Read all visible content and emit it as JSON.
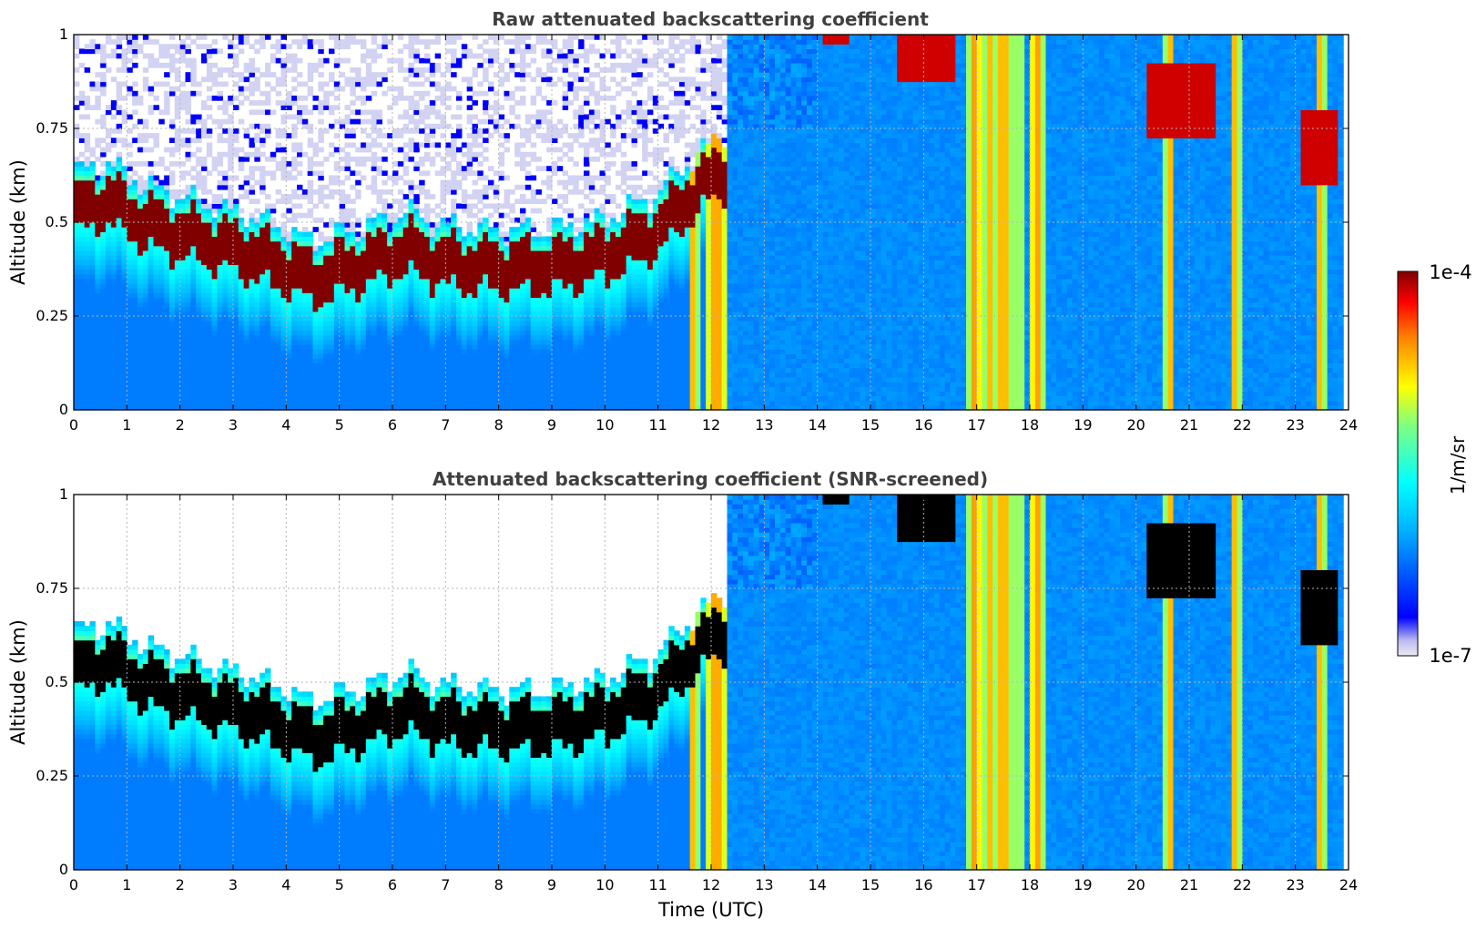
{
  "chart_data": {
    "type": "heatmap",
    "panels": [
      {
        "title": "Raw attenuated backscattering coefficient",
        "variant": "raw",
        "ylabel": "Altitude (km)",
        "xlabel": "",
        "xlim": [
          0,
          24
        ],
        "ylim": [
          0,
          1
        ],
        "xticks": [
          "0",
          "1",
          "2",
          "3",
          "4",
          "5",
          "6",
          "7",
          "8",
          "9",
          "10",
          "11",
          "12",
          "13",
          "14",
          "15",
          "16",
          "17",
          "18",
          "19",
          "20",
          "21",
          "22",
          "23",
          "24"
        ],
        "yticks": [
          "0",
          "0.25",
          "0.5",
          "0.75",
          "1"
        ],
        "grid": true
      },
      {
        "title": "Attenuated backscattering coefficient (SNR-screened)",
        "variant": "screened",
        "ylabel": "Altitude (km)",
        "xlabel": "Time (UTC)",
        "xlim": [
          0,
          24
        ],
        "ylim": [
          0,
          1
        ],
        "xticks": [
          "0",
          "1",
          "2",
          "3",
          "4",
          "5",
          "6",
          "7",
          "8",
          "9",
          "10",
          "11",
          "12",
          "13",
          "14",
          "15",
          "16",
          "17",
          "18",
          "19",
          "20",
          "21",
          "22",
          "23",
          "24"
        ],
        "yticks": [
          "0",
          "0.25",
          "0.5",
          "0.75",
          "1"
        ],
        "grid": true
      }
    ],
    "colorbar": {
      "label": "1/m/sr",
      "min_label": "1e-7",
      "max_label": "1e-4",
      "scale": "log",
      "colormap": "jet"
    },
    "features": {
      "cloud_base_km": [
        [
          0,
          0.47
        ],
        [
          0.7,
          0.5
        ],
        [
          0.9,
          0.47
        ],
        [
          1.5,
          0.43
        ],
        [
          2.5,
          0.39
        ],
        [
          3.5,
          0.35
        ],
        [
          4.5,
          0.29
        ],
        [
          5.5,
          0.33
        ],
        [
          6.3,
          0.37
        ],
        [
          7.0,
          0.33
        ],
        [
          8.0,
          0.32
        ],
        [
          9.0,
          0.32
        ],
        [
          10.0,
          0.35
        ],
        [
          11.0,
          0.42
        ],
        [
          11.7,
          0.52
        ],
        [
          12.2,
          0.58
        ]
      ],
      "precipitation_shafts_utc": [
        [
          11.6,
          11.75
        ],
        [
          11.9,
          12.3
        ],
        [
          16.85,
          17.1
        ],
        [
          17.15,
          17.3
        ],
        [
          17.35,
          17.65
        ],
        [
          17.75,
          17.85
        ],
        [
          18.0,
          18.25
        ],
        [
          20.55,
          20.7
        ],
        [
          21.8,
          21.95
        ],
        [
          23.4,
          23.55
        ]
      ],
      "upper_clouds": [
        {
          "start": 14.1,
          "end": 14.6,
          "base_km": 0.98
        },
        {
          "start": 15.5,
          "end": 16.6,
          "base_km": 0.88
        },
        {
          "start": 20.2,
          "end": 21.5,
          "base_km": 0.72
        },
        {
          "start": 23.1,
          "end": 23.8,
          "base_km": 0.6
        }
      ],
      "data_end_utc": 23.85
    }
  }
}
